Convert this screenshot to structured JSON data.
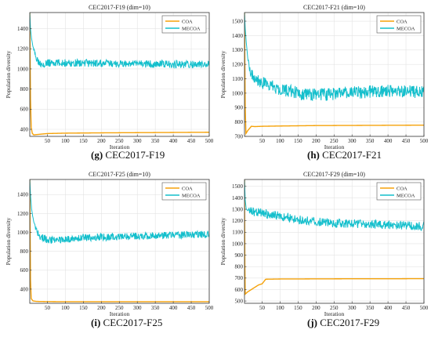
{
  "colors": {
    "coa": "#f5a20a",
    "mecoa": "#14bfcc"
  },
  "chart_data": [
    {
      "type": "line",
      "title": "CEC2017-F19 (dim=10)",
      "xlabel": "Iteration",
      "ylabel": "Population diversity",
      "caption_letter": "(g)",
      "caption_text": " CEC2017-F19",
      "xlim": [
        1,
        500
      ],
      "ylim": [
        330,
        1560
      ],
      "xticks": [
        50,
        100,
        150,
        200,
        250,
        300,
        350,
        400,
        450,
        500
      ],
      "yticks": [
        400,
        600,
        800,
        1000,
        1200,
        1400
      ],
      "legend_position": "top-right",
      "grid": true,
      "series": [
        {
          "name": "COA",
          "color": "#f5a20a",
          "points": [
            [
              1,
              1560
            ],
            [
              2,
              1100
            ],
            [
              3,
              700
            ],
            [
              5,
              420
            ],
            [
              8,
              360
            ],
            [
              12,
              345
            ],
            [
              20,
              348
            ],
            [
              50,
              358
            ],
            [
              100,
              362
            ],
            [
              200,
              365
            ],
            [
              300,
              367
            ],
            [
              400,
              369
            ],
            [
              500,
              371
            ]
          ]
        },
        {
          "name": "MECOA",
          "color": "#14bfcc",
          "points": [
            [
              1,
              1560
            ],
            [
              3,
              1400
            ],
            [
              6,
              1300
            ],
            [
              10,
              1220
            ],
            [
              15,
              1150
            ],
            [
              20,
              1110
            ],
            [
              25,
              1080
            ],
            [
              30,
              1060
            ],
            [
              40,
              1055
            ],
            [
              60,
              1060
            ],
            [
              100,
              1058
            ],
            [
              200,
              1055
            ],
            [
              300,
              1050
            ],
            [
              400,
              1048
            ],
            [
              500,
              1040
            ]
          ],
          "noise": 38
        }
      ]
    },
    {
      "type": "line",
      "title": "CEC2017-F21 (dim=10)",
      "xlabel": "Iteration",
      "ylabel": "Population diversity",
      "caption_letter": "(h)",
      "caption_text": " CEC2017-F21",
      "xlim": [
        1,
        500
      ],
      "ylim": [
        700,
        1560
      ],
      "xticks": [
        50,
        100,
        150,
        200,
        250,
        300,
        350,
        400,
        450,
        500
      ],
      "yticks": [
        700,
        800,
        900,
        1000,
        1100,
        1200,
        1300,
        1400,
        1500
      ],
      "legend_position": "top-right",
      "grid": true,
      "series": [
        {
          "name": "COA",
          "color": "#f5a20a",
          "points": [
            [
              1,
              1560
            ],
            [
              2,
              1200
            ],
            [
              3,
              900
            ],
            [
              5,
              720
            ],
            [
              10,
              740
            ],
            [
              15,
              755
            ],
            [
              20,
              770
            ],
            [
              30,
              768
            ],
            [
              50,
              770
            ],
            [
              100,
              772
            ],
            [
              200,
              775
            ],
            [
              300,
              776
            ],
            [
              400,
              777
            ],
            [
              500,
              778
            ]
          ]
        },
        {
          "name": "MECOA",
          "color": "#14bfcc",
          "points": [
            [
              1,
              1560
            ],
            [
              3,
              1450
            ],
            [
              6,
              1350
            ],
            [
              10,
              1250
            ],
            [
              15,
              1180
            ],
            [
              20,
              1140
            ],
            [
              30,
              1110
            ],
            [
              50,
              1070
            ],
            [
              100,
              1030
            ],
            [
              150,
              1000
            ],
            [
              200,
              990
            ],
            [
              250,
              995
            ],
            [
              300,
              1005
            ],
            [
              350,
              1010
            ],
            [
              400,
              1015
            ],
            [
              450,
              1010
            ],
            [
              500,
              1005
            ]
          ],
          "noise": 45
        }
      ]
    },
    {
      "type": "line",
      "title": "CEC2017-F25 (dim=10)",
      "xlabel": "Iteration",
      "ylabel": "Population diversity",
      "caption_letter": "(i)",
      "caption_text": " CEC2017-F25",
      "xlim": [
        1,
        500
      ],
      "ylim": [
        250,
        1560
      ],
      "xticks": [
        50,
        100,
        150,
        200,
        250,
        300,
        350,
        400,
        450,
        500
      ],
      "yticks": [
        400,
        600,
        800,
        1000,
        1200,
        1400
      ],
      "legend_position": "top-right",
      "grid": true,
      "series": [
        {
          "name": "COA",
          "color": "#f5a20a",
          "points": [
            [
              1,
              1560
            ],
            [
              2,
              1000
            ],
            [
              3,
              500
            ],
            [
              5,
              300
            ],
            [
              10,
              275
            ],
            [
              20,
              270
            ],
            [
              50,
              268
            ],
            [
              100,
              267
            ],
            [
              200,
              267
            ],
            [
              300,
              267
            ],
            [
              400,
              267
            ],
            [
              500,
              267
            ]
          ]
        },
        {
          "name": "MECOA",
          "color": "#14bfcc",
          "points": [
            [
              1,
              1560
            ],
            [
              3,
              1400
            ],
            [
              6,
              1250
            ],
            [
              10,
              1150
            ],
            [
              15,
              1080
            ],
            [
              20,
              1020
            ],
            [
              30,
              960
            ],
            [
              50,
              920
            ],
            [
              100,
              925
            ],
            [
              150,
              945
            ],
            [
              200,
              950
            ],
            [
              250,
              955
            ],
            [
              300,
              960
            ],
            [
              350,
              965
            ],
            [
              400,
              970
            ],
            [
              450,
              975
            ],
            [
              500,
              980
            ]
          ],
          "noise": 38
        }
      ]
    },
    {
      "type": "line",
      "title": "CEC2017-F29 (dim=10)",
      "xlabel": "Iteration",
      "ylabel": "Population diversity",
      "caption_letter": "(j)",
      "caption_text": " CEC2017-F29",
      "xlim": [
        1,
        500
      ],
      "ylim": [
        480,
        1560
      ],
      "xticks": [
        50,
        100,
        150,
        200,
        250,
        300,
        350,
        400,
        450,
        500
      ],
      "yticks": [
        500,
        600,
        700,
        800,
        900,
        1000,
        1100,
        1200,
        1300,
        1400,
        1500
      ],
      "legend_position": "top-right",
      "grid": true,
      "series": [
        {
          "name": "COA",
          "color": "#f5a20a",
          "points": [
            [
              1,
              1560
            ],
            [
              2,
              800
            ],
            [
              3,
              560
            ],
            [
              10,
              580
            ],
            [
              20,
              600
            ],
            [
              30,
              620
            ],
            [
              40,
              640
            ],
            [
              50,
              650
            ],
            [
              60,
              690
            ],
            [
              100,
              692
            ],
            [
              200,
              693
            ],
            [
              300,
              694
            ],
            [
              400,
              694
            ],
            [
              500,
              695
            ]
          ]
        },
        {
          "name": "MECOA",
          "color": "#14bfcc",
          "points": [
            [
              1,
              1560
            ],
            [
              3,
              1380
            ],
            [
              6,
              1300
            ],
            [
              10,
              1290
            ],
            [
              20,
              1280
            ],
            [
              50,
              1270
            ],
            [
              100,
              1240
            ],
            [
              150,
              1210
            ],
            [
              200,
              1190
            ],
            [
              250,
              1180
            ],
            [
              300,
              1175
            ],
            [
              350,
              1170
            ],
            [
              400,
              1165
            ],
            [
              450,
              1160
            ],
            [
              500,
              1150
            ]
          ],
          "noise": 38
        }
      ]
    }
  ]
}
